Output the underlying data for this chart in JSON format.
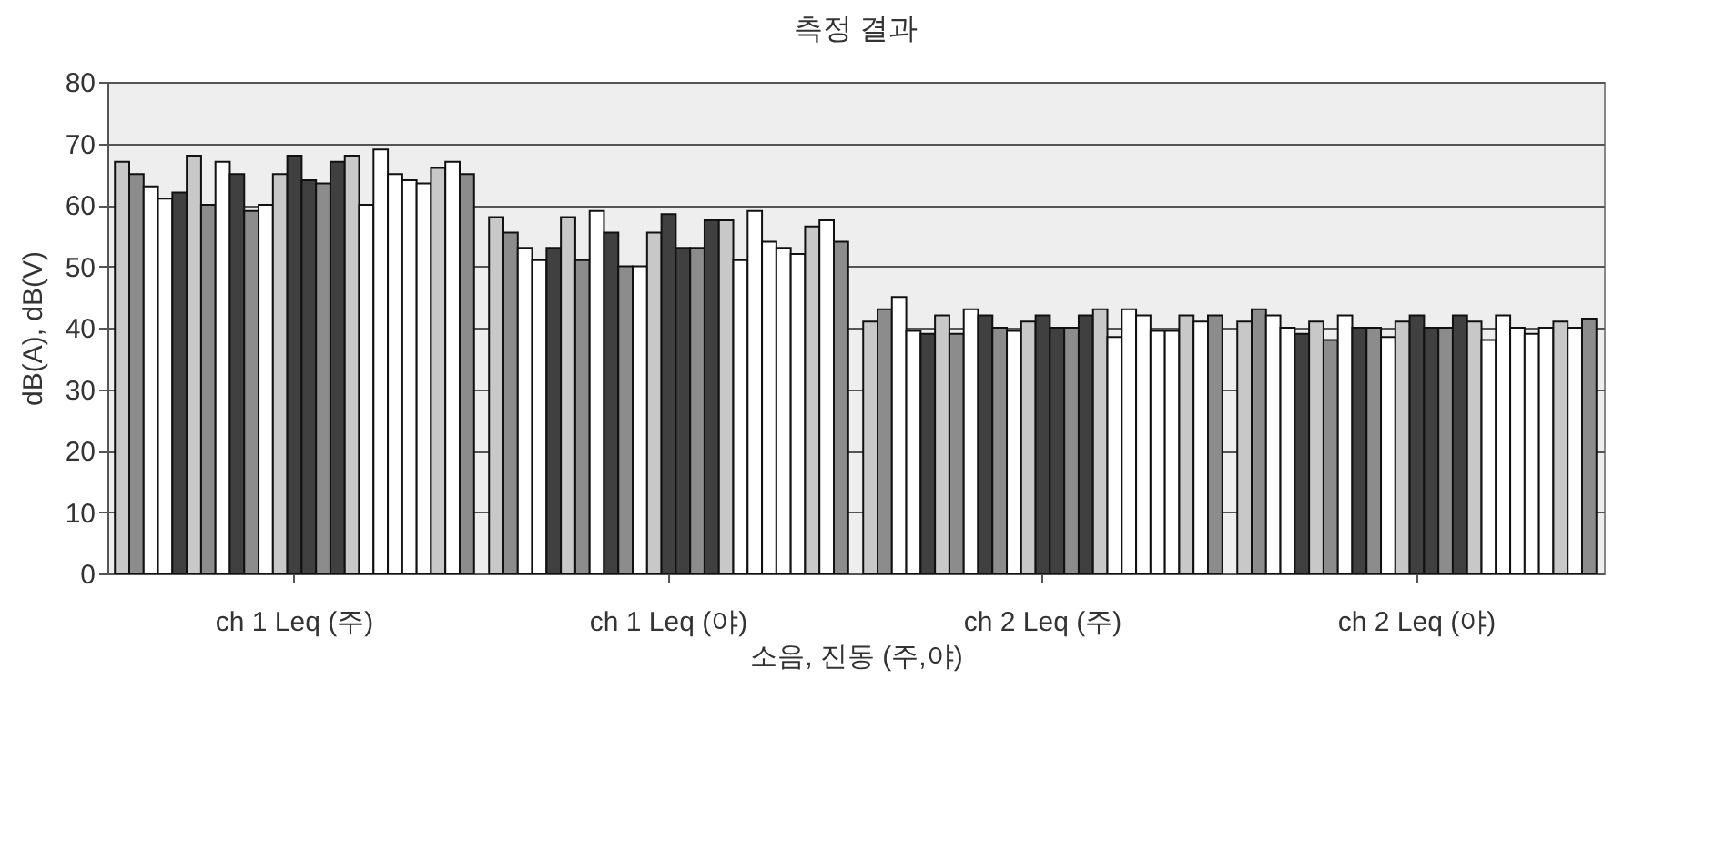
{
  "chart_data": {
    "type": "bar",
    "title": "측정 결과",
    "xlabel": "소음, 진동 (주,야)",
    "ylabel": "dB(A), dB(V)",
    "categories": [
      "ch 1 Leq (주)",
      "ch 1 Leq (야)",
      "ch 2 Leq (주)",
      "ch 2 Leq (야)"
    ],
    "ylim": [
      0,
      80
    ],
    "yticks": [
      0,
      10,
      20,
      30,
      40,
      50,
      60,
      70,
      80
    ],
    "grid": "y",
    "legend": false,
    "series": [
      {
        "color": "#c8c8c8",
        "values": [
          67,
          58,
          41,
          41
        ]
      },
      {
        "color": "#8c8c8c",
        "values": [
          65,
          55.5,
          43,
          43
        ]
      },
      {
        "color": "#ffffff",
        "values": [
          63,
          53,
          45,
          42
        ]
      },
      {
        "color": "#ffffff",
        "values": [
          61,
          51,
          39.5,
          40
        ]
      },
      {
        "color": "#404040",
        "values": [
          62,
          53,
          39,
          39
        ]
      },
      {
        "color": "#c8c8c8",
        "values": [
          68,
          58,
          42,
          41
        ]
      },
      {
        "color": "#8c8c8c",
        "values": [
          60,
          51,
          39,
          38
        ]
      },
      {
        "color": "#ffffff",
        "values": [
          67,
          59,
          43,
          42
        ]
      },
      {
        "color": "#404040",
        "values": [
          65,
          55.5,
          42,
          40
        ]
      },
      {
        "color": "#8c8c8c",
        "values": [
          59,
          50,
          40,
          40
        ]
      },
      {
        "color": "#ffffff",
        "values": [
          60,
          50,
          39.5,
          38.5
        ]
      },
      {
        "color": "#c8c8c8",
        "values": [
          65,
          55.5,
          41,
          41
        ]
      },
      {
        "color": "#404040",
        "values": [
          68,
          58.5,
          42,
          42
        ]
      },
      {
        "color": "#404040",
        "values": [
          64,
          53,
          40,
          40
        ]
      },
      {
        "color": "#8c8c8c",
        "values": [
          63.5,
          53,
          40,
          40
        ]
      },
      {
        "color": "#404040",
        "values": [
          67,
          57.5,
          42,
          42
        ]
      },
      {
        "color": "#c8c8c8",
        "values": [
          68,
          57.5,
          43,
          41
        ]
      },
      {
        "color": "#ffffff",
        "values": [
          60,
          51,
          38.5,
          38
        ]
      },
      {
        "color": "#ffffff",
        "values": [
          69,
          59,
          43,
          42
        ]
      },
      {
        "color": "#ffffff",
        "values": [
          65,
          54,
          42,
          40
        ]
      },
      {
        "color": "#ffffff",
        "values": [
          64,
          53,
          39.5,
          39
        ]
      },
      {
        "color": "#ffffff",
        "values": [
          63.5,
          52,
          39.5,
          40
        ]
      },
      {
        "color": "#c8c8c8",
        "values": [
          66,
          56.5,
          42,
          41
        ]
      },
      {
        "color": "#ffffff",
        "values": [
          67,
          57.5,
          41,
          40
        ]
      },
      {
        "color": "#8c8c8c",
        "values": [
          65,
          54,
          42,
          41.5
        ]
      }
    ]
  }
}
